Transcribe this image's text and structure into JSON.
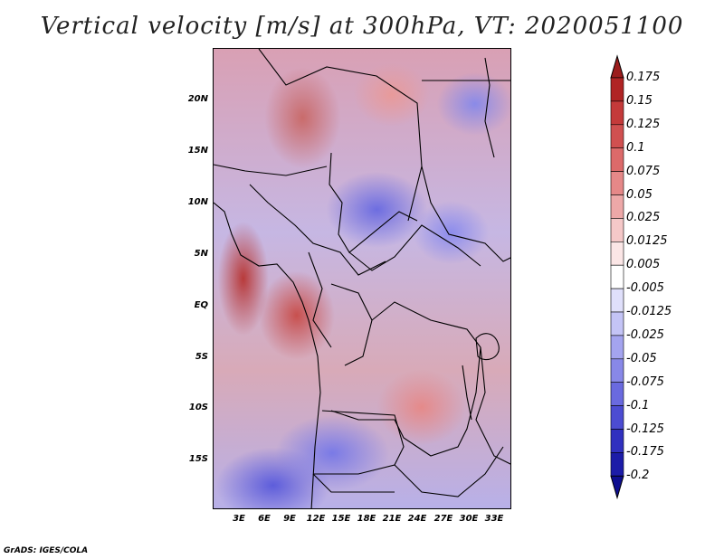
{
  "title": "Vertical velocity [m/s] at 300hPa, VT: 2020051100",
  "map": {
    "lat_labels": [
      "20N",
      "15N",
      "10N",
      "5N",
      "EQ",
      "5S",
      "10S",
      "15S"
    ],
    "lon_labels": [
      "3E",
      "6E",
      "9E",
      "12E",
      "15E",
      "18E",
      "21E",
      "24E",
      "27E",
      "30E",
      "33E"
    ]
  },
  "colorbar": {
    "labels": [
      "0.175",
      "0.15",
      "0.125",
      "0.1",
      "0.075",
      "0.05",
      "0.025",
      "0.0125",
      "0.005",
      "-0.005",
      "-0.0125",
      "-0.025",
      "-0.05",
      "-0.075",
      "-0.1",
      "-0.125",
      "-0.175",
      "-0.2"
    ],
    "colors": [
      "#9b1c1c",
      "#b02424",
      "#c43a3a",
      "#d05050",
      "#dc6a6a",
      "#e58888",
      "#eda8a8",
      "#f5c8c8",
      "#fbe6e6",
      "#ffffff",
      "#e0e0fb",
      "#c4c4f6",
      "#a4a4ef",
      "#8888e8",
      "#6a6adf",
      "#4c4cd2",
      "#3030bf",
      "#1c1ca8",
      "#0e0e90"
    ]
  },
  "footer": "GrADS: IGES/COLA"
}
